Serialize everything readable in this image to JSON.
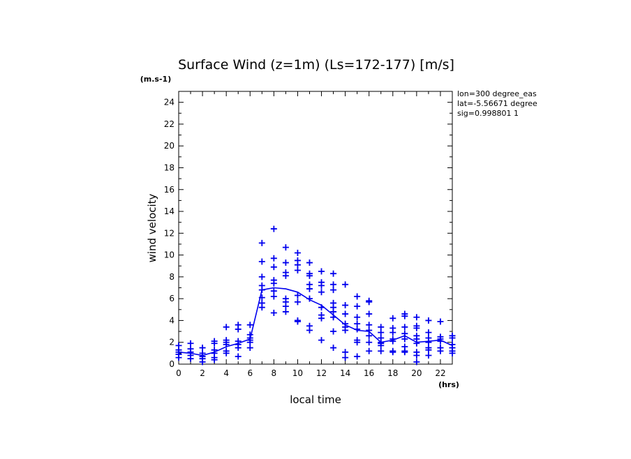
{
  "chart_data": {
    "type": "scatter",
    "title": "Surface Wind (z=1m) (Ls=172-177) [m/s]",
    "units_label": "(m.s-1)",
    "xlabel": "local time",
    "x_units": "(hrs)",
    "ylabel": "wind velocity",
    "xlim": [
      0,
      23
    ],
    "ylim": [
      0,
      25
    ],
    "x_ticks": [
      0,
      2,
      4,
      6,
      8,
      10,
      12,
      14,
      16,
      18,
      20,
      22
    ],
    "y_ticks": [
      0,
      2,
      4,
      6,
      8,
      10,
      12,
      14,
      16,
      18,
      20,
      22,
      24
    ],
    "info_lines": [
      "lon=300 degree_eas",
      "lat=-5.56671 degree",
      "sig=0.998801 1"
    ],
    "marker_color": "#0000ee",
    "series": [
      {
        "kind": "points",
        "points": [
          [
            0,
            1.7
          ],
          [
            0,
            1.3
          ],
          [
            0,
            1.1
          ],
          [
            0,
            0.9
          ],
          [
            0,
            0.6
          ],
          [
            1,
            1.9
          ],
          [
            1,
            1.4
          ],
          [
            1,
            1.1
          ],
          [
            1,
            0.8
          ],
          [
            1,
            0.5
          ],
          [
            2,
            1.5
          ],
          [
            2,
            1.0
          ],
          [
            2,
            0.7
          ],
          [
            2,
            0.5
          ],
          [
            2,
            0.2
          ],
          [
            3,
            2.1
          ],
          [
            3,
            1.9
          ],
          [
            3,
            1.3
          ],
          [
            3,
            1.0
          ],
          [
            3,
            0.6
          ],
          [
            3,
            0.4
          ],
          [
            4,
            3.4
          ],
          [
            4,
            2.2
          ],
          [
            4,
            2.0
          ],
          [
            4,
            1.8
          ],
          [
            4,
            1.2
          ],
          [
            4,
            1.0
          ],
          [
            5,
            3.6
          ],
          [
            5,
            3.2
          ],
          [
            5,
            2.1
          ],
          [
            5,
            1.8
          ],
          [
            5,
            1.5
          ],
          [
            5,
            0.7
          ],
          [
            6,
            3.6
          ],
          [
            6,
            2.7
          ],
          [
            6,
            2.4
          ],
          [
            6,
            2.2
          ],
          [
            6,
            2.0
          ],
          [
            6,
            1.5
          ],
          [
            7,
            11.1
          ],
          [
            7,
            9.4
          ],
          [
            7,
            8.0
          ],
          [
            7,
            7.2
          ],
          [
            7,
            6.8
          ],
          [
            7,
            6.1
          ],
          [
            7,
            5.6
          ],
          [
            7,
            5.2
          ],
          [
            8,
            12.4
          ],
          [
            8,
            9.7
          ],
          [
            8,
            8.9
          ],
          [
            8,
            7.7
          ],
          [
            8,
            7.4
          ],
          [
            8,
            6.7
          ],
          [
            8,
            6.2
          ],
          [
            8,
            4.7
          ],
          [
            9,
            10.7
          ],
          [
            9,
            9.3
          ],
          [
            9,
            8.4
          ],
          [
            9,
            8.1
          ],
          [
            9,
            6.0
          ],
          [
            9,
            5.7
          ],
          [
            9,
            5.3
          ],
          [
            9,
            4.8
          ],
          [
            10,
            10.2
          ],
          [
            10,
            9.5
          ],
          [
            10,
            9.1
          ],
          [
            10,
            8.6
          ],
          [
            10,
            6.3
          ],
          [
            10,
            5.7
          ],
          [
            10,
            4.0
          ],
          [
            10,
            3.9
          ],
          [
            11,
            9.3
          ],
          [
            11,
            8.3
          ],
          [
            11,
            8.1
          ],
          [
            11,
            7.3
          ],
          [
            11,
            6.9
          ],
          [
            11,
            6.0
          ],
          [
            11,
            3.5
          ],
          [
            11,
            3.1
          ],
          [
            12,
            8.5
          ],
          [
            12,
            7.5
          ],
          [
            12,
            7.2
          ],
          [
            12,
            6.6
          ],
          [
            12,
            5.2
          ],
          [
            12,
            4.5
          ],
          [
            12,
            4.2
          ],
          [
            12,
            2.2
          ],
          [
            13,
            8.3
          ],
          [
            13,
            7.3
          ],
          [
            13,
            6.8
          ],
          [
            13,
            5.6
          ],
          [
            13,
            5.2
          ],
          [
            13,
            4.8
          ],
          [
            13,
            4.3
          ],
          [
            13,
            3.0
          ],
          [
            13,
            1.5
          ],
          [
            14,
            7.3
          ],
          [
            14,
            5.4
          ],
          [
            14,
            4.6
          ],
          [
            14,
            3.7
          ],
          [
            14,
            3.4
          ],
          [
            14,
            3.1
          ],
          [
            14,
            1.1
          ],
          [
            14,
            0.6
          ],
          [
            15,
            6.2
          ],
          [
            15,
            5.3
          ],
          [
            15,
            4.3
          ],
          [
            15,
            3.7
          ],
          [
            15,
            3.2
          ],
          [
            15,
            2.2
          ],
          [
            15,
            2.0
          ],
          [
            15,
            0.7
          ],
          [
            16,
            5.8
          ],
          [
            16,
            5.7
          ],
          [
            16,
            4.6
          ],
          [
            16,
            3.6
          ],
          [
            16,
            3.1
          ],
          [
            16,
            2.6
          ],
          [
            16,
            2.0
          ],
          [
            16,
            1.2
          ],
          [
            17,
            3.4
          ],
          [
            17,
            2.9
          ],
          [
            17,
            2.4
          ],
          [
            17,
            2.0
          ],
          [
            17,
            1.9
          ],
          [
            17,
            1.7
          ],
          [
            17,
            1.2
          ],
          [
            18,
            4.2
          ],
          [
            18,
            3.3
          ],
          [
            18,
            2.9
          ],
          [
            18,
            2.3
          ],
          [
            18,
            2.1
          ],
          [
            18,
            1.2
          ],
          [
            18,
            1.1
          ],
          [
            19,
            4.6
          ],
          [
            19,
            4.4
          ],
          [
            19,
            3.4
          ],
          [
            19,
            2.8
          ],
          [
            19,
            2.3
          ],
          [
            19,
            1.6
          ],
          [
            19,
            1.2
          ],
          [
            19,
            1.1
          ],
          [
            20,
            4.3
          ],
          [
            20,
            3.5
          ],
          [
            20,
            3.3
          ],
          [
            20,
            2.6
          ],
          [
            20,
            2.3
          ],
          [
            20,
            1.9
          ],
          [
            20,
            1.1
          ],
          [
            20,
            0.8
          ],
          [
            20,
            0.2
          ],
          [
            21,
            4.0
          ],
          [
            21,
            2.9
          ],
          [
            21,
            2.4
          ],
          [
            21,
            2.0
          ],
          [
            21,
            1.5
          ],
          [
            21,
            1.3
          ],
          [
            21,
            0.8
          ],
          [
            22,
            3.9
          ],
          [
            22,
            2.5
          ],
          [
            22,
            2.3
          ],
          [
            22,
            2.1
          ],
          [
            22,
            1.5
          ],
          [
            22,
            1.2
          ],
          [
            23,
            2.6
          ],
          [
            23,
            2.4
          ],
          [
            23,
            1.8
          ],
          [
            23,
            1.5
          ],
          [
            23,
            1.2
          ],
          [
            23,
            1.0
          ]
        ]
      },
      {
        "kind": "line",
        "x": [
          0,
          1,
          2,
          3,
          4,
          5,
          6,
          7,
          8,
          9,
          10,
          11,
          12,
          13,
          14,
          15,
          16,
          17,
          18,
          19,
          20,
          21,
          22,
          23
        ],
        "values": [
          1.1,
          1.0,
          0.8,
          1.1,
          1.6,
          1.9,
          2.3,
          6.8,
          7.0,
          6.9,
          6.6,
          5.9,
          5.4,
          4.5,
          3.6,
          3.1,
          3.0,
          2.0,
          2.2,
          2.6,
          2.0,
          2.1,
          2.2,
          1.7
        ]
      }
    ]
  }
}
